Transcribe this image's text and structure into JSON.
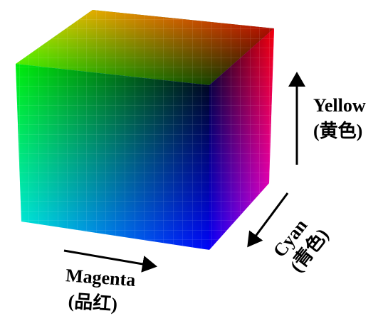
{
  "labels": {
    "yellow": {
      "name": "Yellow",
      "sub": "(黄色)"
    },
    "cyan": {
      "name": "Cyan",
      "sub": "(青色)"
    },
    "magenta": {
      "name": "Magenta",
      "sub": "(品红)"
    }
  },
  "colors": {
    "ink": "#000000",
    "grid": "#ffffff",
    "corner_red": "#ff0000",
    "corner_yellow": "#ffff00",
    "corner_green": "#00ff00",
    "corner_cyan": "#00ffff",
    "corner_blue": "#0000ff",
    "corner_magenta": "#ff00ff",
    "corner_black": "#000000"
  }
}
